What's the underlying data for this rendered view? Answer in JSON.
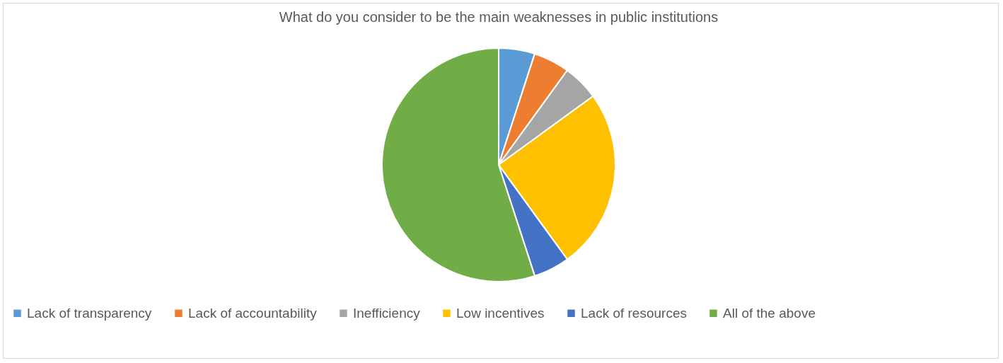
{
  "chart_data": {
    "type": "pie",
    "title": "What do you consider to be the main weaknesses in public institutions",
    "categories": [
      "Lack of transparency",
      "Lack of accountability",
      "Inefficiency",
      "Low incentives",
      "Lack of resources",
      "All of the above"
    ],
    "values": [
      5,
      5,
      5,
      25,
      5,
      55
    ],
    "colors": [
      "#5b9bd5",
      "#ed7d31",
      "#a5a5a5",
      "#ffc000",
      "#4472c4",
      "#70ad47"
    ],
    "legend": "bottom"
  }
}
